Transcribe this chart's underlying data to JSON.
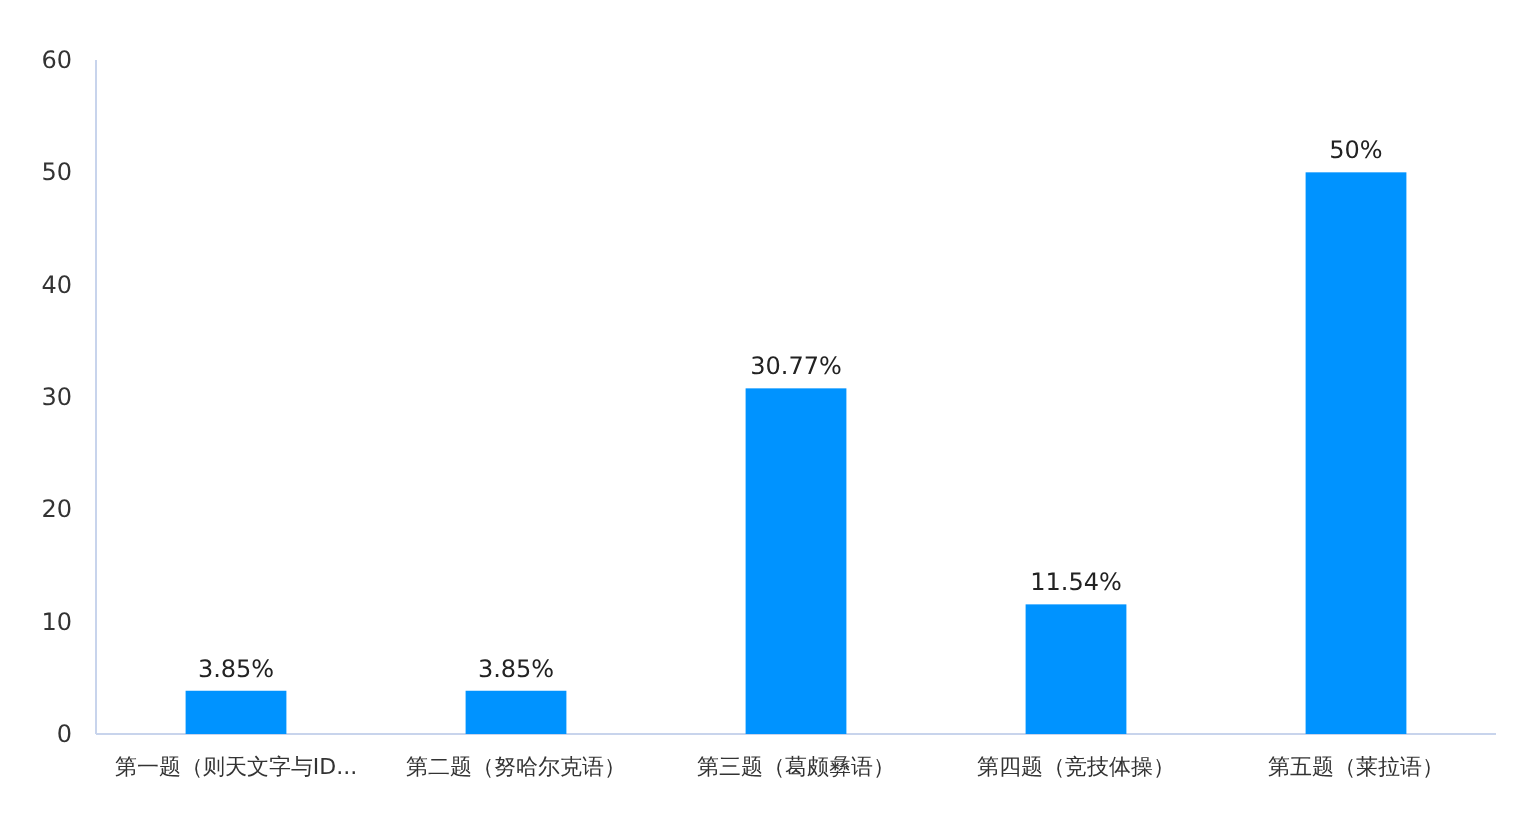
{
  "chart_data": {
    "type": "bar",
    "categories": [
      "第一题（则天文字与ID...",
      "第二题（努哈尔克语）",
      "第三题（葛颇彝语）",
      "第四题（竞技体操）",
      "第五题（莱拉语）"
    ],
    "values": [
      3.85,
      3.85,
      30.77,
      11.54,
      50
    ],
    "value_labels": [
      "3.85%",
      "3.85%",
      "30.77%",
      "11.54%",
      "50%"
    ],
    "color": "#0093ff",
    "ylim": [
      0,
      60
    ],
    "yticks": [
      0,
      10,
      20,
      30,
      40,
      50,
      60
    ]
  }
}
